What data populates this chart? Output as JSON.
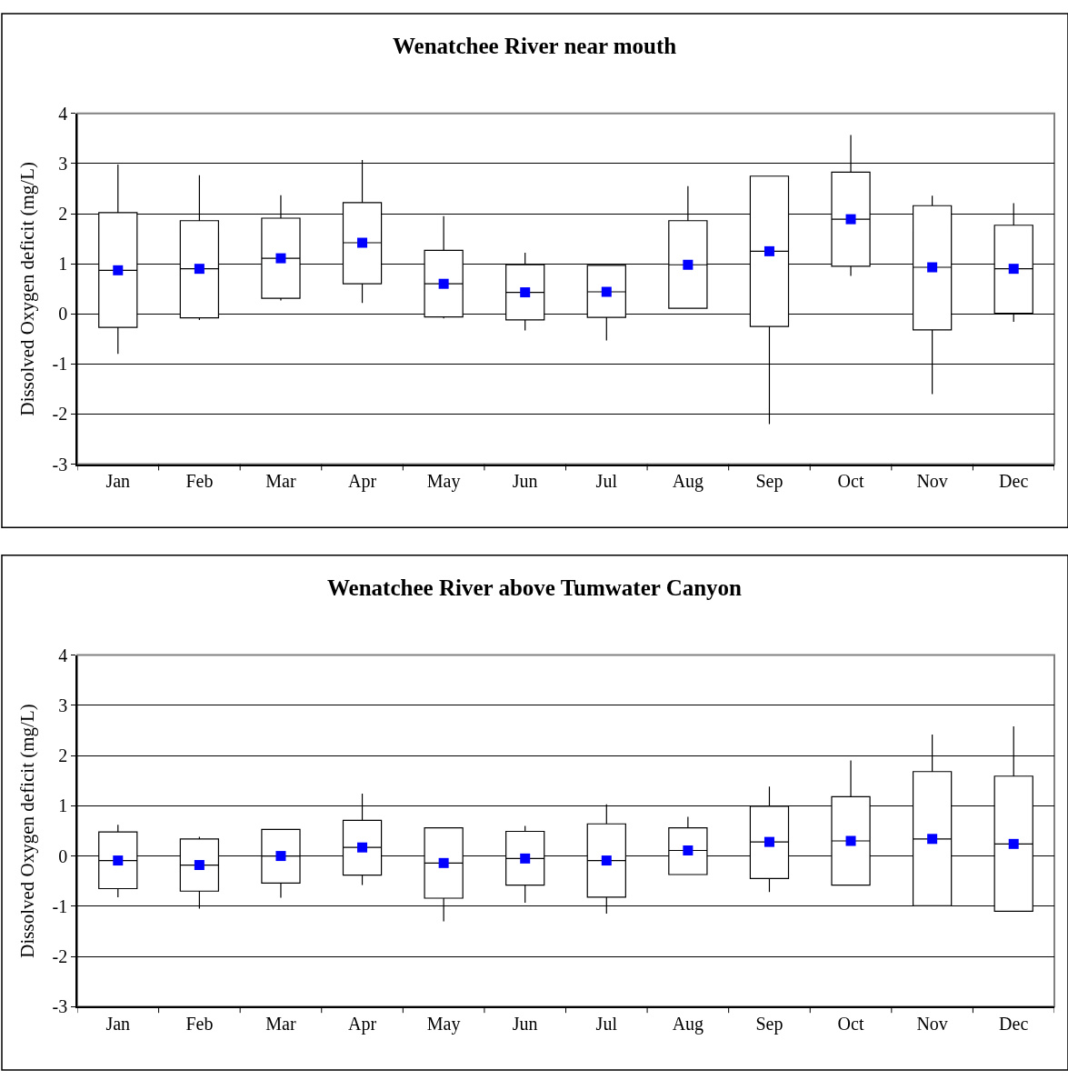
{
  "chart_data": [
    {
      "type": "box",
      "title": "Wenatchee River near mouth",
      "ylabel": "Dissolved Oxygen deficit (mg/L)",
      "categories": [
        "Jan",
        "Feb",
        "Mar",
        "Apr",
        "May",
        "Jun",
        "Jul",
        "Aug",
        "Sep",
        "Oct",
        "Nov",
        "Dec"
      ],
      "ylim": [
        -3,
        4
      ],
      "yticks": [
        -3,
        -2,
        -1,
        0,
        1,
        2,
        3,
        4
      ],
      "grid": "y",
      "series": [
        {
          "color": "#ffffff",
          "boxes": [
            {
              "low": -0.8,
              "q1": -0.27,
              "median": 0.87,
              "q3": 2.02,
              "high": 2.98
            },
            {
              "low": -0.12,
              "q1": -0.08,
              "median": 0.9,
              "q3": 1.86,
              "high": 2.77
            },
            {
              "low": 0.27,
              "q1": 0.31,
              "median": 1.11,
              "q3": 1.91,
              "high": 2.37
            },
            {
              "low": 0.22,
              "q1": 0.6,
              "median": 1.42,
              "q3": 2.22,
              "high": 3.07
            },
            {
              "low": -0.09,
              "q1": -0.06,
              "median": 0.6,
              "q3": 1.27,
              "high": 1.95
            },
            {
              "low": -0.33,
              "q1": -0.12,
              "median": 0.43,
              "q3": 0.98,
              "high": 1.22
            },
            {
              "low": -0.53,
              "q1": -0.07,
              "median": 0.44,
              "q3": 0.97,
              "high": 0.97
            },
            {
              "low": 0.11,
              "q1": 0.11,
              "median": 0.98,
              "q3": 1.86,
              "high": 2.55
            },
            {
              "low": -2.2,
              "q1": -0.25,
              "median": 1.25,
              "q3": 2.75,
              "high": 2.75
            },
            {
              "low": 0.76,
              "q1": 0.95,
              "median": 1.89,
              "q3": 2.83,
              "high": 3.57
            },
            {
              "low": -1.6,
              "q1": -0.32,
              "median": 0.93,
              "q3": 2.16,
              "high": 2.36
            },
            {
              "low": -0.16,
              "q1": 0.01,
              "median": 0.9,
              "q3": 1.77,
              "high": 2.21
            }
          ]
        },
        {
          "type": "scatter",
          "color": "#0000ff",
          "x": [
            "Jan",
            "Feb",
            "Mar",
            "Apr",
            "May",
            "Jun",
            "Jul",
            "Aug",
            "Sep",
            "Oct",
            "Nov",
            "Dec"
          ],
          "values": [
            0.87,
            0.9,
            1.11,
            1.42,
            0.6,
            0.43,
            0.44,
            0.98,
            1.25,
            1.89,
            0.93,
            0.9
          ]
        }
      ]
    },
    {
      "type": "box",
      "title": "Wenatchee River above Tumwater Canyon",
      "ylabel": "Dissolved Oxygen deficit (mg/L)",
      "categories": [
        "Jan",
        "Feb",
        "Mar",
        "Apr",
        "May",
        "Jun",
        "Jul",
        "Aug",
        "Sep",
        "Oct",
        "Nov",
        "Dec"
      ],
      "ylim": [
        -3,
        4
      ],
      "yticks": [
        -3,
        -2,
        -1,
        0,
        1,
        2,
        3,
        4
      ],
      "grid": "y",
      "series": [
        {
          "color": "#ffffff",
          "boxes": [
            {
              "low": -0.82,
              "q1": -0.65,
              "median": -0.09,
              "q3": 0.48,
              "high": 0.62
            },
            {
              "low": -1.05,
              "q1": -0.7,
              "median": -0.18,
              "q3": 0.34,
              "high": 0.38
            },
            {
              "low": -0.83,
              "q1": -0.54,
              "median": 0.0,
              "q3": 0.53,
              "high": 0.53
            },
            {
              "low": -0.58,
              "q1": -0.38,
              "median": 0.17,
              "q3": 0.71,
              "high": 1.24
            },
            {
              "low": -1.3,
              "q1": -0.84,
              "median": -0.14,
              "q3": 0.56,
              "high": 0.56
            },
            {
              "low": -0.93,
              "q1": -0.58,
              "median": -0.05,
              "q3": 0.49,
              "high": 0.6
            },
            {
              "low": -1.15,
              "q1": -0.82,
              "median": -0.09,
              "q3": 0.64,
              "high": 1.03
            },
            {
              "low": -0.37,
              "q1": -0.37,
              "median": 0.11,
              "q3": 0.56,
              "high": 0.78
            },
            {
              "low": -0.72,
              "q1": -0.45,
              "median": 0.28,
              "q3": 0.99,
              "high": 1.38
            },
            {
              "low": -0.58,
              "q1": -0.58,
              "median": 0.3,
              "q3": 1.18,
              "high": 1.9
            },
            {
              "low": -0.99,
              "q1": -0.99,
              "median": 0.34,
              "q3": 1.68,
              "high": 2.42
            },
            {
              "low": -1.1,
              "q1": -1.1,
              "median": 0.24,
              "q3": 1.59,
              "high": 2.58
            }
          ]
        },
        {
          "type": "scatter",
          "color": "#0000ff",
          "x": [
            "Jan",
            "Feb",
            "Mar",
            "Apr",
            "May",
            "Jun",
            "Jul",
            "Aug",
            "Sep",
            "Oct",
            "Nov",
            "Dec"
          ],
          "values": [
            -0.09,
            -0.18,
            0.0,
            0.17,
            -0.14,
            -0.05,
            -0.09,
            0.11,
            0.28,
            0.3,
            0.34,
            0.24
          ]
        }
      ]
    }
  ]
}
